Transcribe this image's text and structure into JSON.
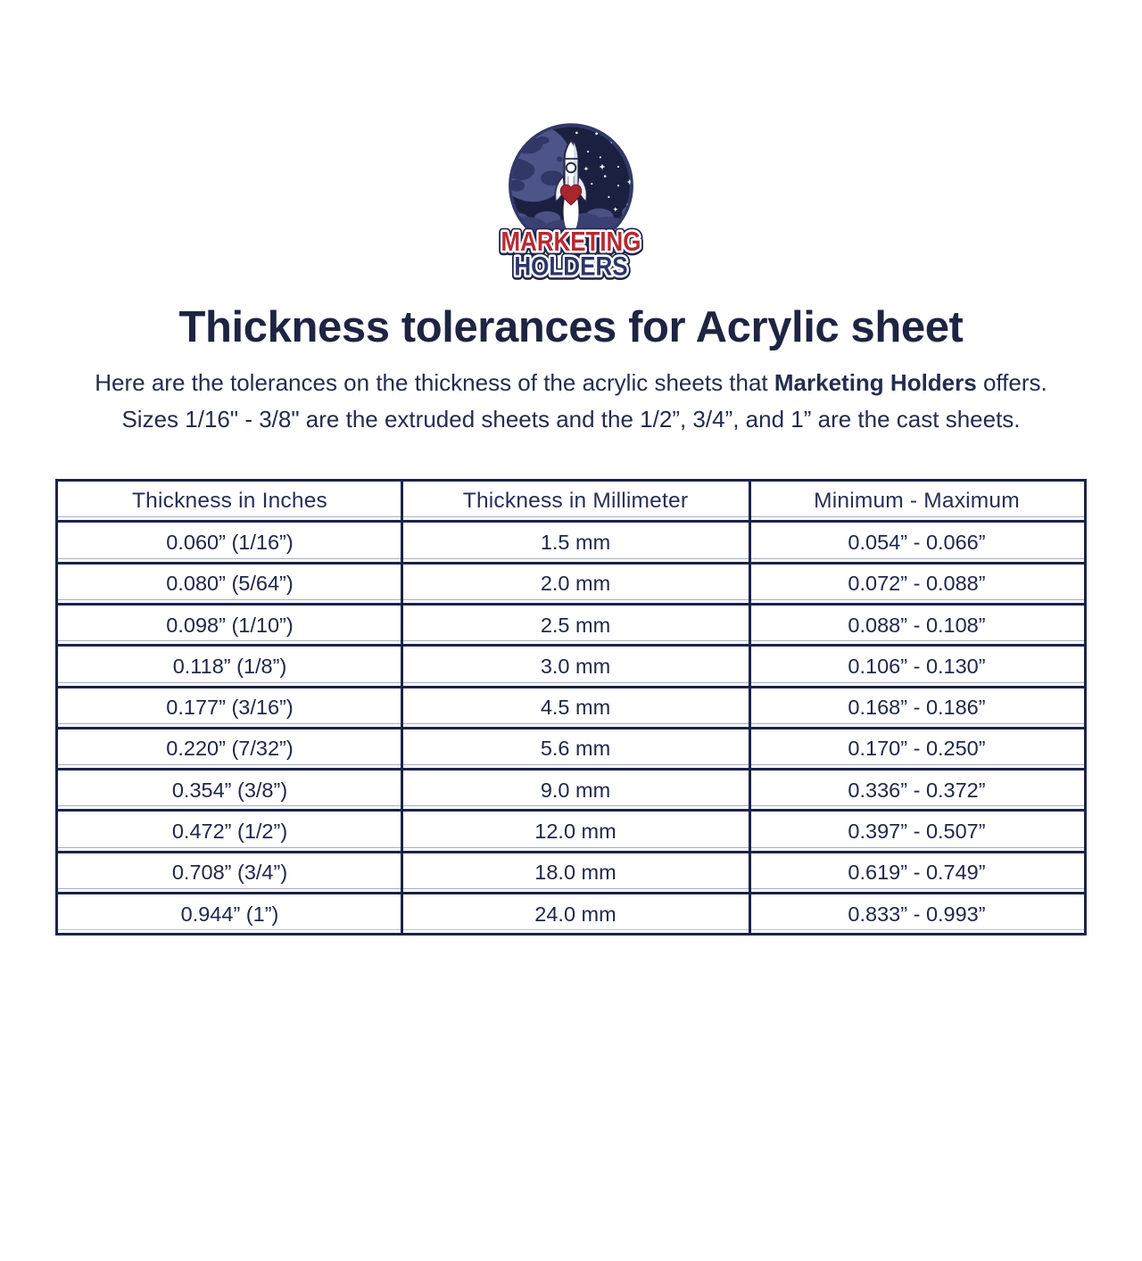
{
  "logo": {
    "line1": "MARKETING",
    "line2": "HOLDERS"
  },
  "header": {
    "title": "Thickness tolerances for Acrylic sheet",
    "intro_pre": "Here are the tolerances on the thickness of the acrylic sheets that ",
    "intro_bold": "Marketing Holders",
    "intro_post": " offers.",
    "intro_line2": "Sizes 1/16\" - 3/8\" are the extruded sheets and the 1/2”, 3/4”, and 1” are the cast sheets."
  },
  "table": {
    "headers": [
      "Thickness in Inches",
      "Thickness in Millimeter",
      "Minimum - Maximum"
    ],
    "rows": [
      [
        "0.060” (1/16”)",
        "1.5 mm",
        "0.054” - 0.066”"
      ],
      [
        "0.080” (5/64”)",
        "2.0 mm",
        "0.072” - 0.088”"
      ],
      [
        "0.098” (1/10”)",
        "2.5 mm",
        "0.088” - 0.108”"
      ],
      [
        "0.118” (1/8”)",
        "3.0 mm",
        "0.106” - 0.130”"
      ],
      [
        "0.177” (3/16”)",
        "4.5 mm",
        "0.168” - 0.186”"
      ],
      [
        "0.220” (7/32”)",
        "5.6 mm",
        "0.170” - 0.250”"
      ],
      [
        "0.354” (3/8”)",
        "9.0 mm",
        "0.336” - 0.372”"
      ],
      [
        "0.472” (1/2”)",
        "12.0 mm",
        "0.397” - 0.507”"
      ],
      [
        "0.708” (3/4”)",
        "18.0 mm",
        "0.619” - 0.749”"
      ],
      [
        "0.944” (1”)",
        "24.0 mm",
        "0.833” - 0.993”"
      ]
    ]
  },
  "colors": {
    "navy_border": "#1c2349",
    "text_navy": "#242c4f",
    "title_navy": "#1e2442",
    "thin_divider": "#a9aec5",
    "logo_red": "#b62a31",
    "logo_navy": "#2c3566",
    "logo_sky": "#1b2041",
    "logo_planet": "#4d5488"
  }
}
